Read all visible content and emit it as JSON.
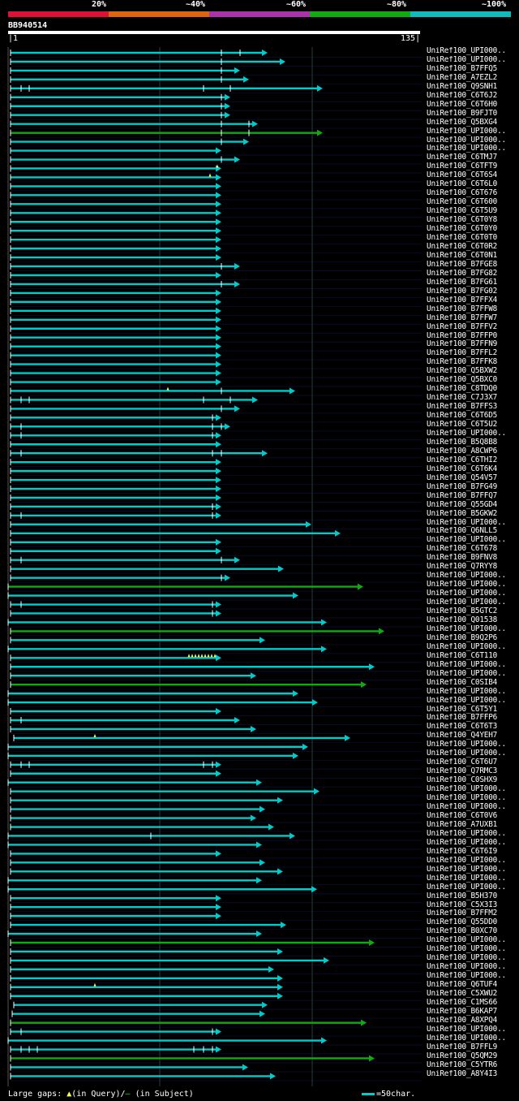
{
  "legend": {
    "segments": [
      {
        "color": "#dd1133"
      },
      {
        "color": "#dd6611"
      },
      {
        "color": "#aa33aa"
      },
      {
        "color": "#11aa11"
      },
      {
        "color": "#11bbbb"
      }
    ],
    "labels": [
      "20%",
      "~40%",
      "~60%",
      "~80%",
      "~100%"
    ]
  },
  "query": {
    "name": "BB940514",
    "start": "1",
    "end": "135"
  },
  "hits": [
    {
      "label": "UniRef100_UPI000..",
      "end": 330,
      "color": "cyan",
      "ticks": [
        273,
        296
      ]
    },
    {
      "label": "UniRef100_UPI000..",
      "end": 352,
      "color": "cyan",
      "ticks": [
        273
      ]
    },
    {
      "label": "UniRef100_B7FFQ5",
      "end": 296,
      "color": "cyan",
      "ticks": [
        273
      ]
    },
    {
      "label": "UniRef100_A7EZL2",
      "end": 307,
      "color": "cyan",
      "ticks": [
        273
      ]
    },
    {
      "label": "UniRef100_Q9SNH1",
      "end": 398,
      "color": "cyan",
      "ticks": [
        26,
        36,
        251,
        284
      ]
    },
    {
      "label": "UniRef100_C6T6J2",
      "end": 284,
      "color": "cyan",
      "ticks": [
        273
      ]
    },
    {
      "label": "UniRef100_C6T6H0",
      "end": 284,
      "color": "cyan",
      "ticks": [
        273
      ]
    },
    {
      "label": "UniRef100_B9FJT0",
      "end": 284,
      "color": "cyan",
      "ticks": [
        273
      ]
    },
    {
      "label": "UniRef100_Q5BXG4",
      "end": 318,
      "color": "cyan",
      "ticks": [
        273,
        307
      ]
    },
    {
      "label": "UniRef100_UPI000..",
      "end": 398,
      "color": "green",
      "ticks": [
        273,
        307
      ]
    },
    {
      "label": "UniRef100_UPI000..",
      "end": 307,
      "color": "cyan",
      "ticks": [
        273
      ]
    },
    {
      "label": "UniRef100_UPI000..",
      "end": 273,
      "color": "cyan",
      "ticks": []
    },
    {
      "label": "UniRef100_C6TMJ7",
      "end": 296,
      "color": "cyan",
      "ticks": [
        273
      ]
    },
    {
      "label": "UniRef100_C6TFT9",
      "end": 273,
      "color": "cyan",
      "ticks": [],
      "tri": [
        268
      ]
    },
    {
      "label": "UniRef100_C6T6S4",
      "end": 273,
      "color": "cyan",
      "ticks": [],
      "tri": [
        259
      ]
    },
    {
      "label": "UniRef100_C6T6L0",
      "end": 273,
      "color": "cyan",
      "ticks": []
    },
    {
      "label": "UniRef100_C6T676",
      "end": 273,
      "color": "cyan",
      "ticks": []
    },
    {
      "label": "UniRef100_C6T600",
      "end": 273,
      "color": "cyan",
      "ticks": []
    },
    {
      "label": "UniRef100_C6T5U9",
      "end": 273,
      "color": "cyan",
      "ticks": []
    },
    {
      "label": "UniRef100_C6T0Y8",
      "end": 273,
      "color": "cyan",
      "ticks": []
    },
    {
      "label": "UniRef100_C6T0Y0",
      "end": 273,
      "color": "cyan",
      "ticks": []
    },
    {
      "label": "UniRef100_C6T0T0",
      "end": 273,
      "color": "cyan",
      "ticks": []
    },
    {
      "label": "UniRef100_C6T0R2",
      "end": 273,
      "color": "cyan",
      "ticks": []
    },
    {
      "label": "UniRef100_C6T0N1",
      "end": 273,
      "color": "cyan",
      "ticks": []
    },
    {
      "label": "UniRef100_B7FGE8",
      "end": 296,
      "color": "cyan",
      "ticks": [
        273
      ]
    },
    {
      "label": "UniRef100_B7FG82",
      "end": 273,
      "color": "cyan",
      "ticks": []
    },
    {
      "label": "UniRef100_B7FG61",
      "end": 296,
      "color": "cyan",
      "ticks": [
        273
      ]
    },
    {
      "label": "UniRef100_B7FG02",
      "end": 273,
      "color": "cyan",
      "ticks": []
    },
    {
      "label": "UniRef100_B7FFX4",
      "end": 273,
      "color": "cyan",
      "ticks": []
    },
    {
      "label": "UniRef100_B7FFW8",
      "end": 273,
      "color": "cyan",
      "ticks": []
    },
    {
      "label": "UniRef100_B7FFW7",
      "end": 273,
      "color": "cyan",
      "ticks": []
    },
    {
      "label": "UniRef100_B7FFV2",
      "end": 273,
      "color": "cyan",
      "ticks": []
    },
    {
      "label": "UniRef100_B7FFP0",
      "end": 273,
      "color": "cyan",
      "ticks": []
    },
    {
      "label": "UniRef100_B7FFN9",
      "end": 273,
      "color": "cyan",
      "ticks": []
    },
    {
      "label": "UniRef100_B7FFL2",
      "end": 273,
      "color": "cyan",
      "ticks": []
    },
    {
      "label": "UniRef100_B7FFK8",
      "end": 273,
      "color": "cyan",
      "ticks": []
    },
    {
      "label": "UniRef100_Q5BXW2",
      "end": 273,
      "color": "cyan",
      "ticks": []
    },
    {
      "label": "UniRef100_Q5BXC0",
      "end": 273,
      "color": "cyan",
      "ticks": []
    },
    {
      "label": "UniRef100_C8TDQ0",
      "end": 364,
      "color": "cyan",
      "ticks": [
        273
      ],
      "tri": [
        207
      ]
    },
    {
      "label": "UniRef100_C7J3X7",
      "end": 318,
      "color": "cyan",
      "ticks": [
        26,
        36,
        251,
        284
      ]
    },
    {
      "label": "UniRef100_B7FFS3",
      "end": 296,
      "color": "cyan",
      "ticks": [
        273
      ]
    },
    {
      "label": "UniRef100_C6T6D5",
      "end": 273,
      "color": "cyan",
      "ticks": [
        262
      ]
    },
    {
      "label": "UniRef100_C6T5U2",
      "end": 284,
      "color": "cyan",
      "ticks": [
        26,
        262,
        273
      ]
    },
    {
      "label": "UniRef100_UPI000..",
      "end": 273,
      "color": "cyan",
      "ticks": [
        26,
        262
      ]
    },
    {
      "label": "UniRef100_B5Q8B8",
      "end": 273,
      "color": "cyan",
      "ticks": []
    },
    {
      "label": "UniRef100_A8CWP6",
      "end": 330,
      "color": "cyan",
      "ticks": [
        26,
        262,
        273
      ]
    },
    {
      "label": "UniRef100_C6THI2",
      "end": 273,
      "color": "cyan",
      "ticks": []
    },
    {
      "label": "UniRef100_C6T6K4",
      "end": 273,
      "color": "cyan",
      "ticks": []
    },
    {
      "label": "UniRef100_Q54V57",
      "end": 273,
      "color": "cyan",
      "ticks": []
    },
    {
      "label": "UniRef100_B7FG49",
      "end": 273,
      "color": "cyan",
      "ticks": []
    },
    {
      "label": "UniRef100_B7FFQ7",
      "end": 273,
      "color": "cyan",
      "ticks": []
    },
    {
      "label": "UniRef100_Q55GD4",
      "end": 273,
      "color": "cyan",
      "ticks": [
        262
      ]
    },
    {
      "label": "UniRef100_B5GKW2",
      "end": 273,
      "color": "cyan",
      "ticks": [
        26,
        262
      ]
    },
    {
      "label": "UniRef100_UPI000..",
      "end": 384,
      "color": "cyan",
      "ticks": []
    },
    {
      "label": "UniRef100_Q6NLL5",
      "end": 420,
      "color": "cyan",
      "ticks": []
    },
    {
      "label": "UniRef100_UPI000..",
      "end": 273,
      "color": "cyan",
      "ticks": []
    },
    {
      "label": "UniRef100_C6T678",
      "end": 273,
      "color": "cyan",
      "ticks": []
    },
    {
      "label": "UniRef100_B9FNV8",
      "end": 296,
      "color": "cyan",
      "ticks": [
        26,
        273
      ]
    },
    {
      "label": "UniRef100_Q7RYY8",
      "end": 350,
      "color": "cyan",
      "ticks": []
    },
    {
      "label": "UniRef100_UPI000..",
      "end": 284,
      "color": "cyan",
      "ticks": [
        273
      ]
    },
    {
      "label": "UniRef100_UPI000..",
      "end": 448,
      "color": "green",
      "ticks": [],
      "start": 10
    },
    {
      "label": "UniRef100_UPI000..",
      "end": 368,
      "color": "cyan",
      "ticks": [],
      "start": 10
    },
    {
      "label": "UniRef100_UPI000..",
      "end": 273,
      "color": "cyan",
      "ticks": [
        26,
        262
      ]
    },
    {
      "label": "UniRef100_B5GTC2",
      "end": 273,
      "color": "cyan",
      "ticks": [
        262
      ]
    },
    {
      "label": "UniRef100_Q01538",
      "end": 403,
      "color": "cyan",
      "ticks": [],
      "start": 10
    },
    {
      "label": "UniRef100_UPI000..",
      "end": 474,
      "color": "green",
      "ticks": []
    },
    {
      "label": "UniRef100_B9Q2P6",
      "end": 327,
      "color": "cyan",
      "ticks": []
    },
    {
      "label": "UniRef100_UPI000..",
      "end": 403,
      "color": "cyan",
      "ticks": [],
      "start": 10
    },
    {
      "label": "UniRef100_C6T110",
      "end": 273,
      "color": "cyan",
      "ticks": [],
      "tri": [
        233,
        237,
        241,
        245,
        249,
        253,
        257,
        261,
        265
      ]
    },
    {
      "label": "UniRef100_UPI000..",
      "end": 462,
      "color": "cyan",
      "ticks": []
    },
    {
      "label": "UniRef100_UPI000..",
      "end": 316,
      "color": "cyan",
      "ticks": []
    },
    {
      "label": "UniRef100_C0SIB4",
      "end": 452,
      "color": "green",
      "ticks": []
    },
    {
      "label": "UniRef100_UPI000..",
      "end": 368,
      "color": "cyan",
      "ticks": [],
      "start": 10
    },
    {
      "label": "UniRef100_UPI000..",
      "end": 392,
      "color": "cyan",
      "ticks": [],
      "start": 10
    },
    {
      "label": "UniRef100_C6T5Y1",
      "end": 273,
      "color": "cyan",
      "ticks": []
    },
    {
      "label": "UniRef100_B7FFP6",
      "end": 296,
      "color": "cyan",
      "ticks": [
        26
      ]
    },
    {
      "label": "UniRef100_C6T6T3",
      "end": 316,
      "color": "cyan",
      "ticks": []
    },
    {
      "label": "UniRef100_Q4YEH7",
      "end": 432,
      "color": "cyan",
      "ticks": [],
      "start": 17,
      "tri": [
        117
      ]
    },
    {
      "label": "UniRef100_UPI000..",
      "end": 380,
      "color": "cyan",
      "ticks": [],
      "start": 10
    },
    {
      "label": "UniRef100_UPI000..",
      "end": 368,
      "color": "cyan",
      "ticks": [],
      "start": 10
    },
    {
      "label": "UniRef100_C6T6U7",
      "end": 273,
      "color": "cyan",
      "ticks": [
        26,
        36,
        251,
        262
      ]
    },
    {
      "label": "UniRef100_Q7RMC3",
      "end": 273,
      "color": "cyan",
      "ticks": []
    },
    {
      "label": "UniRef100_C0SHX9",
      "end": 323,
      "color": "cyan",
      "ticks": [],
      "start": 10
    },
    {
      "label": "UniRef100_UPI000..",
      "end": 394,
      "color": "cyan",
      "ticks": []
    },
    {
      "label": "UniRef100_UPI000..",
      "end": 349,
      "color": "cyan",
      "ticks": []
    },
    {
      "label": "UniRef100_UPI000..",
      "end": 327,
      "color": "cyan",
      "ticks": []
    },
    {
      "label": "UniRef100_C6T0V6",
      "end": 316,
      "color": "cyan",
      "ticks": []
    },
    {
      "label": "UniRef100_A7UXB1",
      "end": 338,
      "color": "cyan",
      "ticks": []
    },
    {
      "label": "UniRef100_UPI000..",
      "end": 364,
      "color": "cyan",
      "ticks": [
        186
      ],
      "start": 10
    },
    {
      "label": "UniRef100_UPI000..",
      "end": 323,
      "color": "cyan",
      "ticks": [],
      "start": 10
    },
    {
      "label": "UniRef100_C6T6I9",
      "end": 273,
      "color": "cyan",
      "ticks": []
    },
    {
      "label": "UniRef100_UPI000..",
      "end": 327,
      "color": "cyan",
      "ticks": []
    },
    {
      "label": "UniRef100_UPI000..",
      "end": 349,
      "color": "cyan",
      "ticks": []
    },
    {
      "label": "UniRef100_UPI000..",
      "end": 323,
      "color": "cyan",
      "ticks": [],
      "start": 10
    },
    {
      "label": "UniRef100_UPI000..",
      "end": 391,
      "color": "cyan",
      "ticks": [],
      "start": 10
    },
    {
      "label": "UniRef100_B5H370",
      "end": 273,
      "color": "cyan",
      "ticks": []
    },
    {
      "label": "UniRef100_C5X3I3",
      "end": 273,
      "color": "cyan",
      "ticks": []
    },
    {
      "label": "UniRef100_B7FFM2",
      "end": 273,
      "color": "cyan",
      "ticks": []
    },
    {
      "label": "UniRef100_Q55DD0",
      "end": 353,
      "color": "cyan",
      "ticks": []
    },
    {
      "label": "UniRef100_B0XC70",
      "end": 323,
      "color": "cyan",
      "ticks": [],
      "start": 10
    },
    {
      "label": "UniRef100_UPI000..",
      "end": 462,
      "color": "green",
      "ticks": []
    },
    {
      "label": "UniRef100_UPI000..",
      "end": 349,
      "color": "cyan",
      "ticks": []
    },
    {
      "label": "UniRef100_UPI000..",
      "end": 406,
      "color": "cyan",
      "ticks": []
    },
    {
      "label": "UniRef100_UPI000..",
      "end": 338,
      "color": "cyan",
      "ticks": []
    },
    {
      "label": "UniRef100_UPI000..",
      "end": 349,
      "color": "cyan",
      "ticks": []
    },
    {
      "label": "UniRef100_Q6TUF4",
      "end": 349,
      "color": "cyan",
      "ticks": [],
      "tri": [
        117
      ]
    },
    {
      "label": "UniRef100_C5XWU2",
      "end": 349,
      "color": "cyan",
      "ticks": []
    },
    {
      "label": "UniRef100_C1MS66",
      "end": 330,
      "color": "cyan",
      "ticks": [],
      "start": 17
    },
    {
      "label": "UniRef100_B6KAP7",
      "end": 327,
      "color": "cyan",
      "ticks": [],
      "start": 15
    },
    {
      "label": "UniRef100_A8XPQ4",
      "end": 452,
      "color": "green",
      "ticks": []
    },
    {
      "label": "UniRef100_UPI000..",
      "end": 273,
      "color": "cyan",
      "ticks": [
        26,
        262
      ]
    },
    {
      "label": "UniRef100_UPI000..",
      "end": 403,
      "color": "cyan",
      "ticks": [],
      "start": 10
    },
    {
      "label": "UniRef100_B7FFL9",
      "end": 273,
      "color": "cyan",
      "ticks": [
        26,
        36,
        46,
        239,
        251,
        262
      ]
    },
    {
      "label": "UniRef100_Q5QM29",
      "end": 462,
      "color": "green",
      "ticks": []
    },
    {
      "label": "UniRef100_C5YTR6",
      "end": 306,
      "color": "cyan",
      "ticks": []
    },
    {
      "label": "UniRef100_A8Y4I3",
      "end": 340,
      "color": "cyan",
      "ticks": []
    }
  ],
  "footer": {
    "prefix": "Large gaps: ",
    "tri_symbol": "▲",
    "query_text": "(in Query)/",
    "line_symbol": "—",
    "subject_text": " (in Subject)",
    "scale_text": "=50char."
  },
  "colors": {
    "cyan": "#00cccc",
    "green": "#11aa11",
    "grid": "#0a0a2a",
    "guide": "#2a3a3a",
    "tri": "#ffff66"
  }
}
